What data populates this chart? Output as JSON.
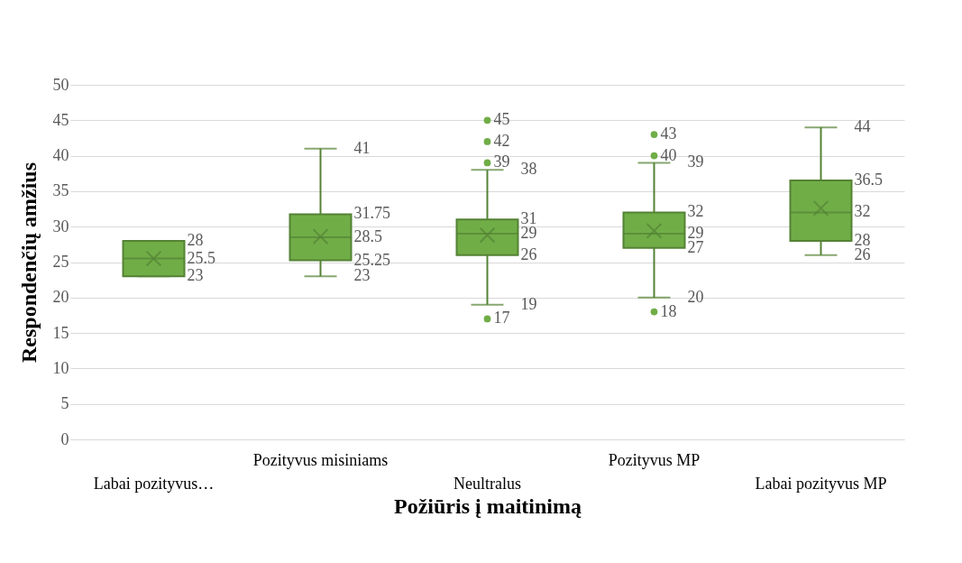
{
  "chart_data": {
    "type": "box",
    "xlabel": "Požiūris į maitinimą",
    "ylabel": "Respondenčių amžius",
    "categories": [
      "Labai pozityvus…",
      "Pozityvus misiniams",
      "Neultralus",
      "Pozityvus MP",
      "Labai pozityvus MP"
    ],
    "color": "#70ad47",
    "boxes": [
      {
        "low": 23,
        "q1": 23,
        "median": 25.5,
        "q3": 28,
        "high": 28,
        "mean": 25.5
      },
      {
        "low": 23,
        "q1": 25.25,
        "median": 28.5,
        "q3": 31.75,
        "high": 41,
        "mean": 28.6
      },
      {
        "low": 19,
        "q1": 26,
        "median": 29,
        "q3": 31,
        "high": 38,
        "mean": 28.8
      },
      {
        "low": 20,
        "q1": 27,
        "median": 29,
        "q3": 32,
        "high": 39,
        "mean": 29.4
      },
      {
        "low": 26,
        "q1": 28,
        "median": 32,
        "q3": 36.5,
        "high": 44,
        "mean": 32.6
      }
    ],
    "series": [
      {
        "type": "scatter",
        "color": "#70ad47",
        "x": [
          "Neultralus",
          "Neultralus",
          "Neultralus",
          "Neultralus",
          "Pozityvus MP",
          "Pozityvus MP",
          "Pozityvus MP"
        ],
        "values": [
          45,
          42,
          39,
          17,
          43,
          40,
          18
        ]
      }
    ],
    "annotations": [
      {
        "text": "28",
        "x": "Labai pozityvus…",
        "y": 28
      },
      {
        "text": "25.5",
        "x": "Labai pozityvus…",
        "y": 25.5
      },
      {
        "text": "23",
        "x": "Labai pozityvus…",
        "y": 23
      },
      {
        "text": "41",
        "x": "Pozityvus misiniams",
        "y": 41
      },
      {
        "text": "31.75",
        "x": "Pozityvus misiniams",
        "y": 31.75
      },
      {
        "text": "28.5",
        "x": "Pozityvus misiniams",
        "y": 28.5
      },
      {
        "text": "25.25",
        "x": "Pozityvus misiniams",
        "y": 25.25
      },
      {
        "text": "23",
        "x": "Pozityvus misiniams",
        "y": 23
      },
      {
        "text": "45",
        "x": "Neultralus",
        "y": 45
      },
      {
        "text": "42",
        "x": "Neultralus",
        "y": 42
      },
      {
        "text": "39",
        "x": "Neultralus",
        "y": 39
      },
      {
        "text": "38",
        "x": "Neultralus",
        "y": 38
      },
      {
        "text": "31",
        "x": "Neultralus",
        "y": 31
      },
      {
        "text": "29",
        "x": "Neultralus",
        "y": 29
      },
      {
        "text": "26",
        "x": "Neultralus",
        "y": 26
      },
      {
        "text": "19",
        "x": "Neultralus",
        "y": 19
      },
      {
        "text": "17",
        "x": "Neultralus",
        "y": 17
      },
      {
        "text": "43",
        "x": "Pozityvus MP",
        "y": 43
      },
      {
        "text": "40",
        "x": "Pozityvus MP",
        "y": 40
      },
      {
        "text": "39",
        "x": "Pozityvus MP",
        "y": 39
      },
      {
        "text": "32",
        "x": "Pozityvus MP",
        "y": 32
      },
      {
        "text": "29",
        "x": "Pozityvus MP",
        "y": 29
      },
      {
        "text": "27",
        "x": "Pozityvus MP",
        "y": 27
      },
      {
        "text": "20",
        "x": "Pozityvus MP",
        "y": 20
      },
      {
        "text": "18",
        "x": "Pozityvus MP",
        "y": 18
      },
      {
        "text": "44",
        "x": "Labai pozityvus MP",
        "y": 44
      },
      {
        "text": "36.5",
        "x": "Labai pozityvus MP",
        "y": 36.5
      },
      {
        "text": "32",
        "x": "Labai pozityvus MP",
        "y": 32
      },
      {
        "text": "28",
        "x": "Labai pozityvus MP",
        "y": 28
      },
      {
        "text": "26",
        "x": "Labai pozityvus MP",
        "y": 26
      }
    ],
    "ylim": [
      0,
      50
    ],
    "yticks": [
      0,
      5,
      10,
      15,
      20,
      25,
      30,
      35,
      40,
      45,
      50
    ],
    "grid": "y",
    "marker": "circle"
  }
}
